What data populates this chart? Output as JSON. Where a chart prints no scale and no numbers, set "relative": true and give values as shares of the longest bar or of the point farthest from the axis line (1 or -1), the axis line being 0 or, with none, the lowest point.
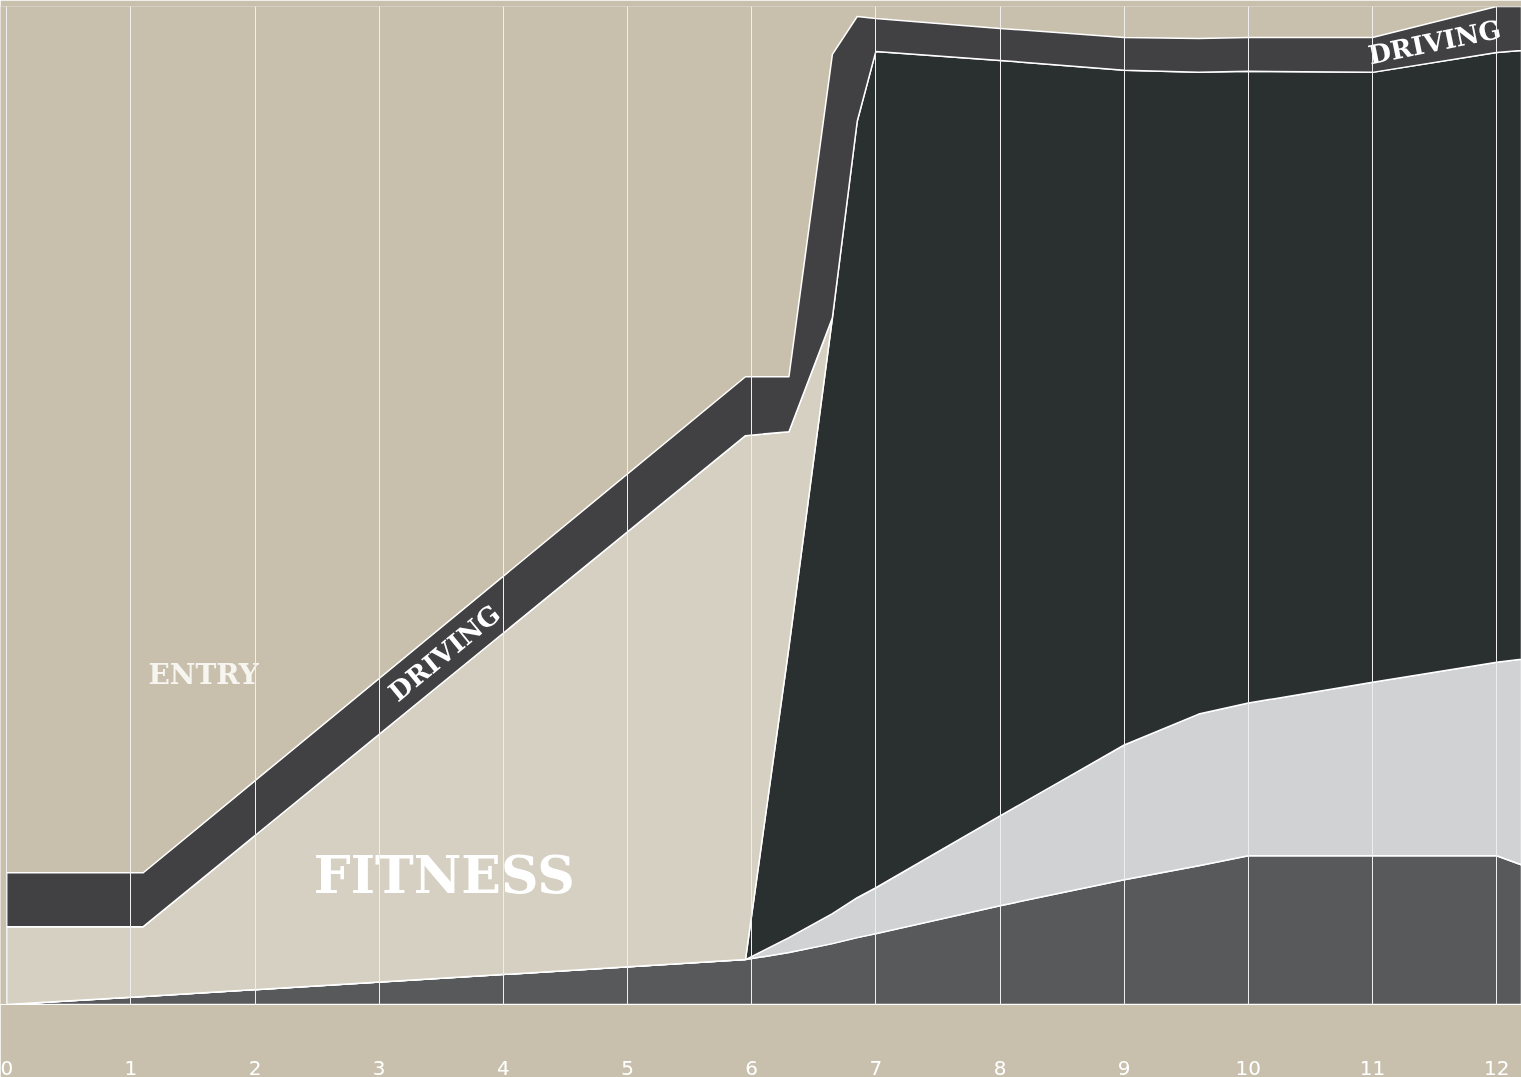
{
  "chart_data": {
    "type": "area",
    "stacked": true,
    "relative": true,
    "x": [
      0,
      1.1,
      5.95,
      6.3,
      6.65,
      6.85,
      7,
      8,
      9,
      9.6,
      10,
      11,
      12,
      12.2
    ],
    "xlim": [
      -0.05,
      12.2
    ],
    "xticks": [
      0,
      1,
      2,
      3,
      4,
      5,
      6,
      7,
      8,
      9,
      10,
      11,
      12
    ],
    "grid": "x",
    "series": [
      {
        "color": "#58595b",
        "values": [
          0,
          0.008,
          0.045,
          0.052,
          0.061,
          0.067,
          0.071,
          0.099,
          0.125,
          0.139,
          0.149,
          0.149,
          0.149,
          0.14
        ]
      },
      {
        "color": "#d1d2d4",
        "values": [
          0,
          0,
          0,
          0.015,
          0.03,
          0.04,
          0.046,
          0.09,
          0.135,
          0.152,
          0.153,
          0.174,
          0.194,
          0.206
        ]
      },
      {
        "color": "#2a2f30",
        "values": [
          0,
          0,
          0,
          0.291,
          0.597,
          0.778,
          0.838,
          0.757,
          0.676,
          0.643,
          0.633,
          0.611,
          0.611,
          0.61
        ]
      },
      {
        "name": "FITNESS",
        "color": "#d6d0c2",
        "values": [
          0.078,
          0.07,
          0.525,
          0.216,
          0,
          null,
          null,
          null,
          null,
          null,
          null,
          null,
          null,
          null
        ]
      },
      {
        "name": "DRIVING",
        "color": "#414042",
        "values": [
          0.054,
          0.054,
          0.059,
          0.055,
          0.264,
          0.105,
          0.033,
          0.032,
          0.033,
          0.034,
          0.034,
          0.035,
          0.046,
          0.044
        ]
      }
    ],
    "annotations": [
      "ENTRY"
    ]
  }
}
